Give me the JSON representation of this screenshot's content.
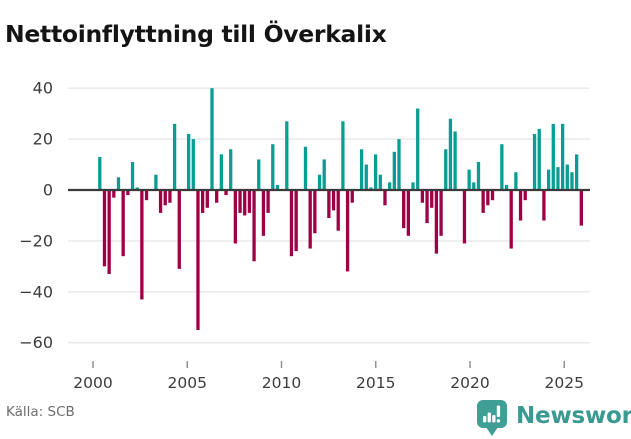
{
  "title": "Nettoinflyttning till Överkalix",
  "footer": {
    "source": "Källa: SCB"
  },
  "branding": {
    "wordmark": "Newsworthy",
    "logo_icon": "bar-chart-badge-icon"
  },
  "colors": {
    "positive": "#0a9d94",
    "negative": "#9e0045",
    "logo_teal": "#3f9e96",
    "logo_icon_fill": "#ffffff",
    "wordmark_text": "#3a9a92",
    "axis_text": "#3c3c3c",
    "grid": "#e8e8e8",
    "tick_mark": "#8a8a8a",
    "zero_line": "#3a3a3a",
    "title_text": "#141414",
    "source_text": "#6e6e6e"
  },
  "chart_data": {
    "type": "bar",
    "title": "Nettoinflyttning till Överkalix",
    "frequency": "quarterly",
    "start": "2000 Q1",
    "end": "2025 Q4",
    "values": [
      13,
      -30,
      -33,
      -3,
      5,
      -26,
      -2,
      11,
      1,
      -43,
      -4,
      0,
      6,
      -9,
      -6,
      -5,
      26,
      -31,
      0,
      22,
      20,
      -55,
      -9,
      -7,
      40,
      -5,
      14,
      -2,
      16,
      -21,
      -9,
      -10,
      -9,
      -28,
      12,
      -18,
      -9,
      18,
      2,
      0,
      27,
      -26,
      -24,
      0,
      17,
      -23,
      -17,
      6,
      12,
      -11,
      -8,
      -16,
      27,
      -32,
      -5,
      0,
      16,
      10,
      1,
      14,
      6,
      -6,
      3,
      15,
      20,
      -15,
      -18,
      3,
      32,
      -5,
      -13,
      -7,
      -25,
      -18,
      16,
      28,
      23,
      0,
      -21,
      8,
      3,
      11,
      -9,
      -6,
      -4,
      0,
      18,
      2,
      -23,
      7,
      -12,
      -4,
      0,
      22,
      24,
      -12,
      8,
      26,
      9,
      26,
      10,
      7,
      14,
      -14
    ],
    "x_ticks": [
      2000,
      2005,
      2010,
      2015,
      2020,
      2025
    ],
    "x_tick_labels": [
      "2000",
      "2005",
      "2010",
      "2015",
      "2020",
      "2025"
    ],
    "y_ticks": [
      40,
      20,
      0,
      -20,
      -40,
      -60
    ],
    "y_tick_labels": [
      "40",
      "20",
      "0",
      "−20",
      "−40",
      "−60"
    ],
    "ylim": [
      -60,
      44
    ],
    "grid": true,
    "legend": false,
    "positive_color": "#0a9d94",
    "negative_color": "#9e0045",
    "xlabel": "",
    "ylabel": "",
    "source": "Källa: SCB"
  }
}
